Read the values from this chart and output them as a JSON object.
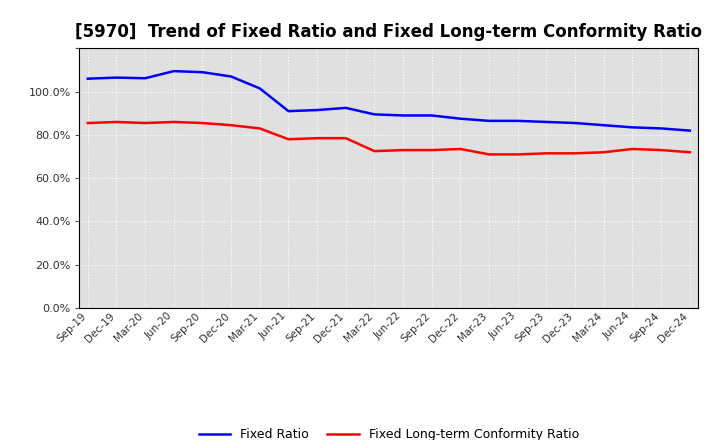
{
  "title": "[5970]  Trend of Fixed Ratio and Fixed Long-term Conformity Ratio",
  "x_labels": [
    "Sep-19",
    "Dec-19",
    "Mar-20",
    "Jun-20",
    "Sep-20",
    "Dec-20",
    "Mar-21",
    "Jun-21",
    "Sep-21",
    "Dec-21",
    "Mar-22",
    "Jun-22",
    "Sep-22",
    "Dec-22",
    "Mar-23",
    "Jun-23",
    "Sep-23",
    "Dec-23",
    "Mar-24",
    "Jun-24",
    "Sep-24",
    "Dec-24"
  ],
  "fixed_ratio": [
    106.0,
    106.5,
    106.2,
    109.5,
    109.0,
    107.0,
    101.5,
    91.0,
    91.5,
    92.5,
    89.5,
    89.0,
    89.0,
    87.5,
    86.5,
    86.5,
    86.0,
    85.5,
    84.5,
    83.5,
    83.0,
    82.0
  ],
  "fixed_lt_ratio": [
    85.5,
    86.0,
    85.5,
    86.0,
    85.5,
    84.5,
    83.0,
    78.0,
    78.5,
    78.5,
    72.5,
    73.0,
    73.0,
    73.5,
    71.0,
    71.0,
    71.5,
    71.5,
    72.0,
    73.5,
    73.0,
    72.0
  ],
  "fixed_ratio_color": "#0000ff",
  "fixed_lt_ratio_color": "#ff0000",
  "ylim": [
    0,
    120
  ],
  "yticks": [
    0,
    20,
    40,
    60,
    80,
    100,
    120
  ],
  "ytick_labels": [
    "0.0%",
    "20.0%",
    "40.0%",
    "60.0%",
    "80.0%",
    "100.0%",
    ""
  ],
  "background_color": "#ffffff",
  "plot_bg_color": "#e0e0e0",
  "grid_color": "#ffffff",
  "legend_fixed_ratio": "Fixed Ratio",
  "legend_fixed_lt_ratio": "Fixed Long-term Conformity Ratio",
  "title_fontsize": 12,
  "line_width": 1.8
}
